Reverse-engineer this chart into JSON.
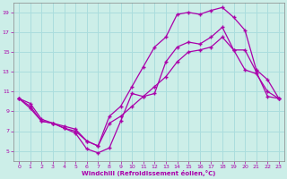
{
  "xlabel": "Windchill (Refroidissement éolien,°C)",
  "bg_color": "#cceee8",
  "grid_color": "#aadddd",
  "line_color": "#aa00aa",
  "xlim": [
    -0.5,
    23.5
  ],
  "ylim": [
    4,
    20
  ],
  "xticks": [
    0,
    1,
    2,
    3,
    4,
    5,
    6,
    7,
    8,
    9,
    10,
    11,
    12,
    13,
    14,
    15,
    16,
    17,
    18,
    19,
    20,
    21,
    22,
    23
  ],
  "yticks": [
    5,
    7,
    9,
    11,
    13,
    15,
    17,
    19
  ],
  "line1_x": [
    0,
    1,
    2,
    3,
    4,
    5,
    6,
    7,
    8,
    9,
    10,
    11,
    12,
    13,
    14,
    15,
    16,
    17,
    18,
    19,
    20,
    21,
    22,
    23
  ],
  "line1_y": [
    10.3,
    9.3,
    8.0,
    7.8,
    7.3,
    6.8,
    5.2,
    4.8,
    5.3,
    8.0,
    10.8,
    10.5,
    10.8,
    14.0,
    15.5,
    16.0,
    15.8,
    16.5,
    17.5,
    15.2,
    13.2,
    12.8,
    11.0,
    10.3
  ],
  "line2_x": [
    0,
    1,
    2,
    3,
    4,
    5,
    6,
    7,
    8,
    9,
    10,
    11,
    12,
    13,
    14,
    15,
    16,
    17,
    18,
    19,
    20,
    21,
    22,
    23
  ],
  "line2_y": [
    10.3,
    9.8,
    8.2,
    7.8,
    7.5,
    7.2,
    6.0,
    5.5,
    8.5,
    9.5,
    11.5,
    13.5,
    15.5,
    16.5,
    18.8,
    19.0,
    18.8,
    19.2,
    19.5,
    18.5,
    17.2,
    13.2,
    12.2,
    10.3
  ],
  "line3_x": [
    0,
    1,
    2,
    3,
    4,
    5,
    6,
    7,
    8,
    9,
    10,
    11,
    12,
    13,
    14,
    15,
    16,
    17,
    18,
    19,
    20,
    21,
    22,
    23
  ],
  "line3_y": [
    10.3,
    9.5,
    8.0,
    7.8,
    7.3,
    7.0,
    6.0,
    5.5,
    7.8,
    8.5,
    9.5,
    10.5,
    11.5,
    12.5,
    14.0,
    15.0,
    15.2,
    15.5,
    16.5,
    15.2,
    15.2,
    13.0,
    10.5,
    10.3
  ]
}
